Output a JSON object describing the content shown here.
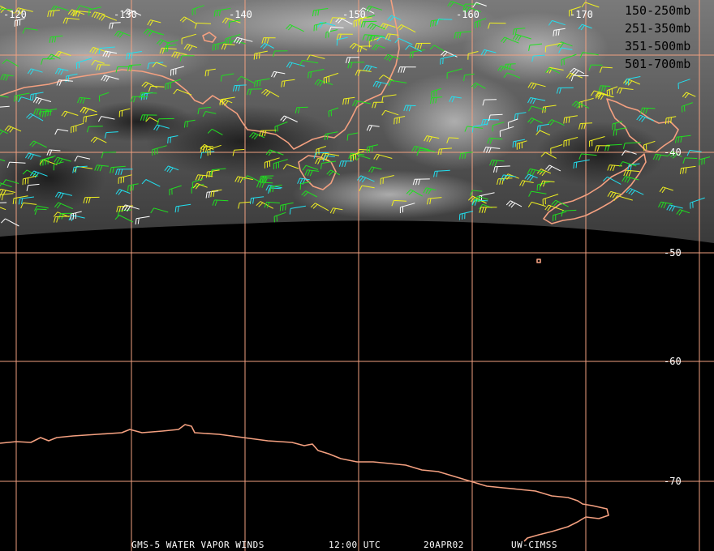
{
  "map": {
    "longitude_labels": [
      "-120",
      "-130",
      "-140",
      "-150",
      "-160",
      "-170"
    ],
    "latitude_labels": [
      "-40",
      "-50",
      "-60",
      "-70"
    ]
  },
  "legend": [
    {
      "label": "150-250mb",
      "color": "#22e0f0"
    },
    {
      "label": "251-350mb",
      "color": "#f0f020"
    },
    {
      "label": "351-500mb",
      "color": "#20e020"
    },
    {
      "label": "501-700mb",
      "color": "#ffffff"
    }
  ],
  "footer": {
    "product": "GMS-5 WATER VAPOR WINDS",
    "time": "12:00 UTC",
    "date": "20APR02",
    "credit": "UW-CIMSS"
  }
}
